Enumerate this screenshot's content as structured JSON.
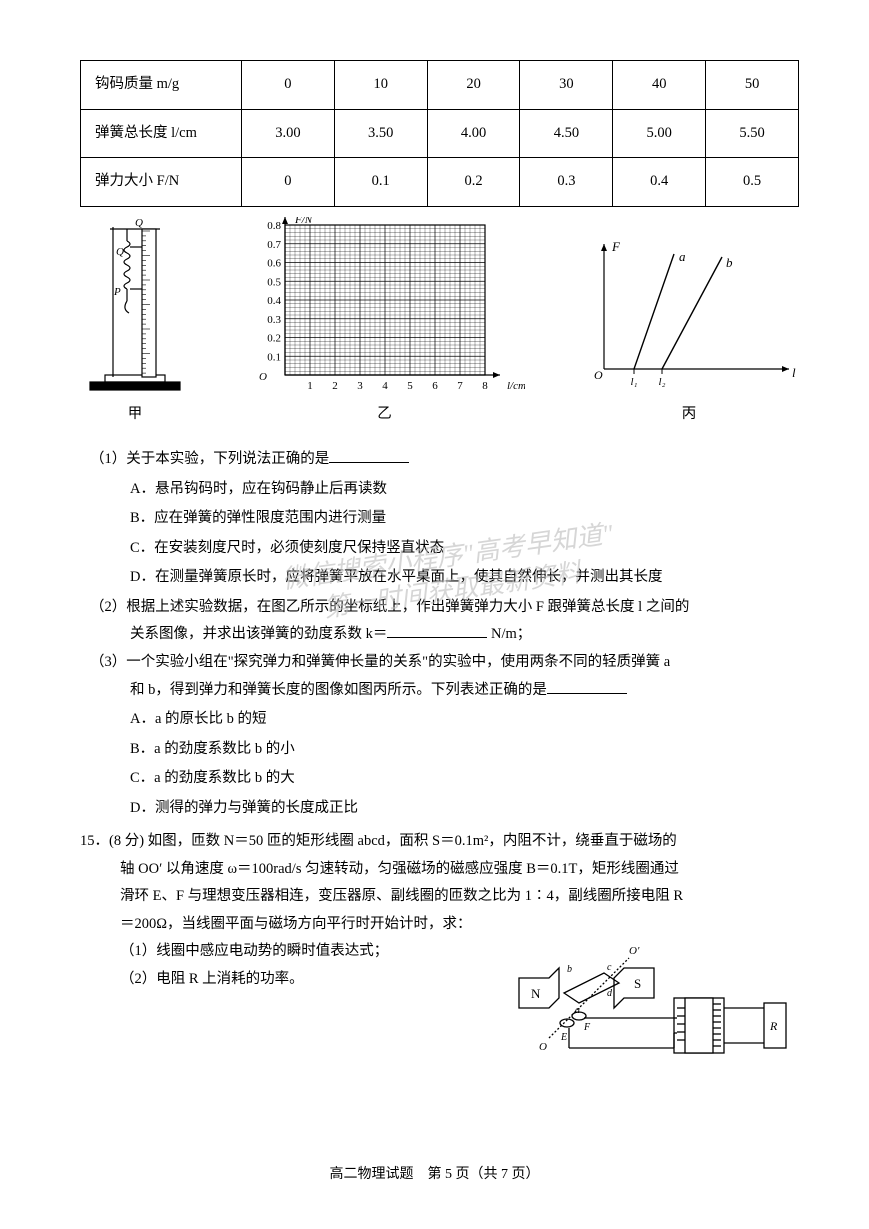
{
  "table": {
    "rows": [
      {
        "label": "钩码质量 m/g",
        "cells": [
          "0",
          "10",
          "20",
          "30",
          "40",
          "50"
        ]
      },
      {
        "label": "弹簧总长度 l/cm",
        "cells": [
          "3.00",
          "3.50",
          "4.00",
          "4.50",
          "5.00",
          "5.50"
        ]
      },
      {
        "label": "弹力大小 F/N",
        "cells": [
          "0",
          "0.1",
          "0.2",
          "0.3",
          "0.4",
          "0.5"
        ]
      }
    ],
    "col_widths_pct": [
      20,
      13.3,
      13.3,
      13.3,
      13.3,
      13.3,
      13.3
    ],
    "border_color": "#000000",
    "font_size_pt": 11
  },
  "figures": {
    "jia": {
      "caption": "甲",
      "type": "apparatus-diagram",
      "annotations": [
        "Q",
        "Q",
        "P"
      ],
      "stroke": "#000000"
    },
    "yi": {
      "caption": "乙",
      "type": "empty-grid-plot",
      "x_label": "l/cm",
      "y_label": "F/N",
      "x_ticks": [
        1,
        2,
        3,
        4,
        5,
        6,
        7,
        8
      ],
      "y_ticks": [
        0.1,
        0.2,
        0.3,
        0.4,
        0.5,
        0.6,
        0.7,
        0.8
      ],
      "xlim": [
        0,
        8.5
      ],
      "ylim": [
        0,
        0.85
      ],
      "grid_divisions_per_unit": 5,
      "origin_label": "O",
      "grid_color": "#000000",
      "axis_color": "#000000",
      "background_color": "#ffffff",
      "label_fontsize_pt": 10
    },
    "bing": {
      "caption": "丙",
      "type": "line-plot",
      "x_axis_label": "l",
      "y_axis_label": "F",
      "origin_label": "O",
      "x_intercept_labels": [
        "l₁",
        "l₂"
      ],
      "series": [
        {
          "name": "a",
          "label": "a",
          "x0": 0.18,
          "slope": 3.2,
          "color": "#000000",
          "line_width": 1.4
        },
        {
          "name": "b",
          "label": "b",
          "x0": 0.34,
          "slope": 2.1,
          "color": "#000000",
          "line_width": 1.4
        }
      ],
      "axis_color": "#000000"
    }
  },
  "questions": {
    "part1": {
      "prompt": "（1）关于本实验，下列说法正确的是",
      "options": {
        "A": "A．悬吊钩码时，应在钩码静止后再读数",
        "B": "B．应在弹簧的弹性限度范围内进行测量",
        "C": "C．在安装刻度尺时，必须使刻度尺保持竖直状态",
        "D": "D．在测量弹簧原长时，应将弹簧平放在水平桌面上，使其自然伸长，并测出其长度"
      }
    },
    "part2_a": "（2）根据上述实验数据，在图乙所示的坐标纸上，作出弹簧弹力大小 F 跟弹簧总长度 l 之间的",
    "part2_b": "关系图像，并求出该弹簧的劲度系数 k＝",
    "part2_unit": " N/m；",
    "part3_a": "（3）一个实验小组在\"探究弹力和弹簧伸长量的关系\"的实验中，使用两条不同的轻质弹簧 a",
    "part3_b": "和 b，得到弹力和弹簧长度的图像如图丙所示。下列表述正确的是",
    "part3_options": {
      "A": "A．a 的原长比 b 的短",
      "B": "B．a 的劲度系数比 b 的小",
      "C": "C．a 的劲度系数比 b 的大",
      "D": "D．测得的弹力与弹簧的长度成正比"
    }
  },
  "q15": {
    "header": "15．(8 分)  如图，匝数 N＝50 匝的矩形线圈 abcd，面积 S＝0.1m²，内阻不计，绕垂直于磁场的",
    "line2": "轴 OO′ 以角速度 ω＝100rad/s 匀速转动，匀强磁场的磁感应强度 B＝0.1T，矩形线圈通过",
    "line3": "滑环 E、F 与理想变压器相连，变压器原、副线圈的匝数之比为 1∶4，副线圈所接电阻 R",
    "line4": "＝200Ω，当线圈平面与磁场方向平行时开始计时，求：",
    "sub1": "（1）线圈中感应电动势的瞬时值表达式；",
    "sub2": "（2）电阻 R 上消耗的功率。",
    "circuit": {
      "type": "circuit-diagram",
      "labels": [
        "O'",
        "a",
        "b",
        "c",
        "d",
        "N",
        "S",
        "E",
        "F",
        "O",
        "R"
      ],
      "stroke": "#000000"
    }
  },
  "watermark": {
    "line1": "微信搜索小程序\"高考早知道\"",
    "line2": "第一时间获取最新资料"
  },
  "footer": "高二物理试题　第 5 页（共 7 页）"
}
